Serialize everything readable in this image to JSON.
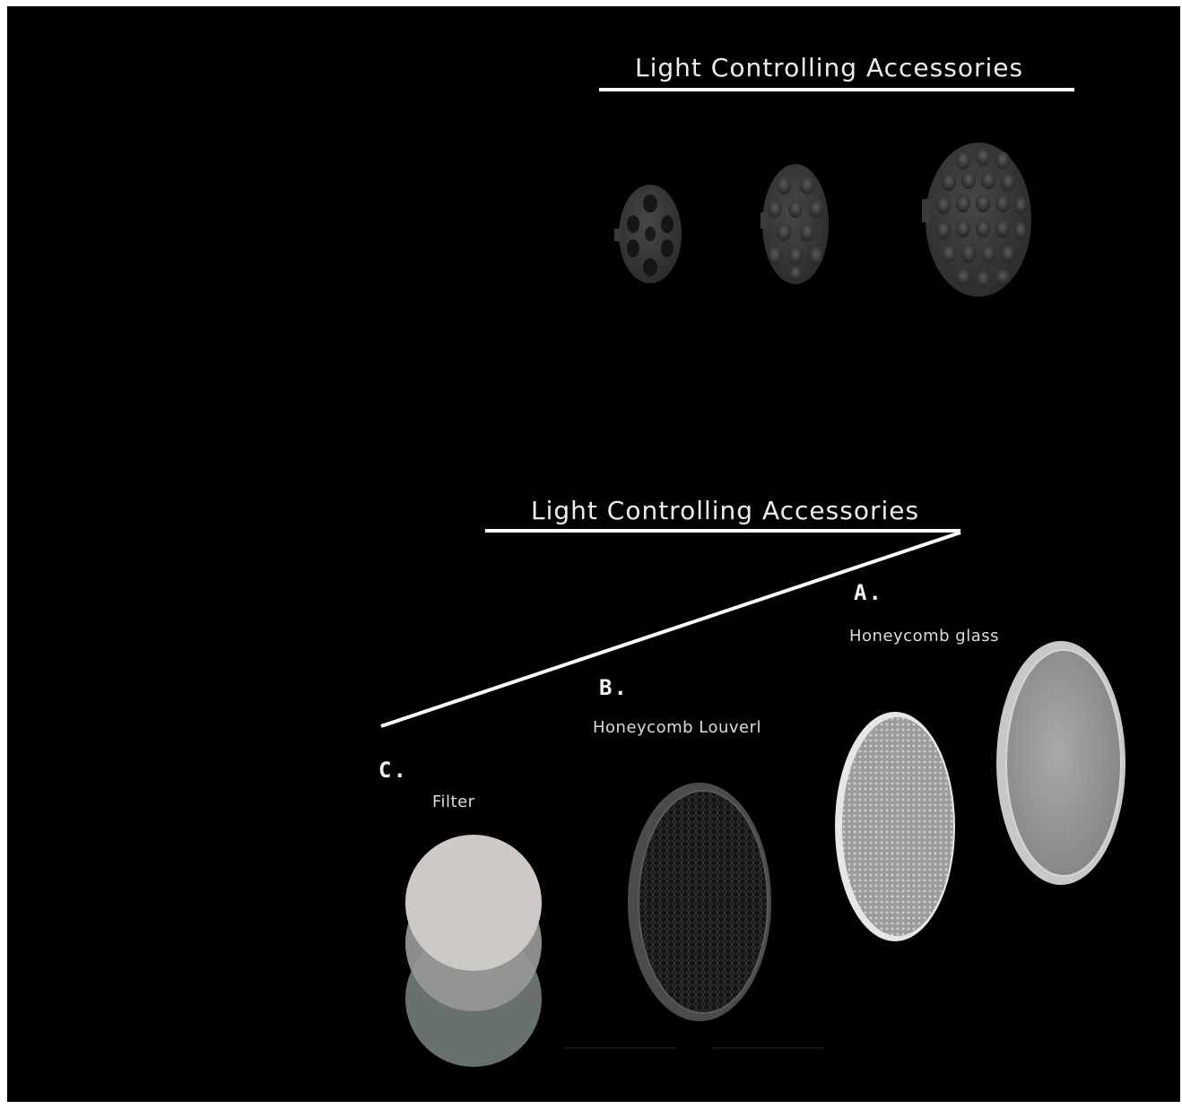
{
  "top_section": {
    "heading": "Light Controlling  Accessories",
    "products": [
      "lens-small",
      "lens-medium",
      "lens-large"
    ]
  },
  "bottom_section": {
    "heading": "Light Controlling  Accessories",
    "items": [
      {
        "letter": "A.",
        "caption": "Honeycomb  glass"
      },
      {
        "letter": "B.",
        "caption": "Honeycomb Louverl"
      },
      {
        "letter": "C.",
        "caption": "Filter"
      }
    ]
  },
  "colors": {
    "background": "#000000",
    "text": "#ededed",
    "lens_gray": "#3a3a3a",
    "filter_light": "#d9d4d0",
    "filter_dark": "#6f7776"
  }
}
